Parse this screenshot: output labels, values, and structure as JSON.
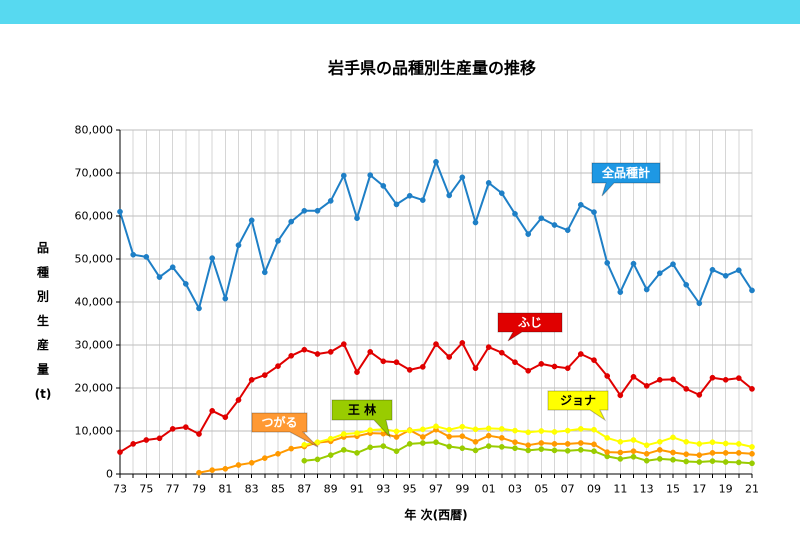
{
  "chart_data": {
    "type": "line",
    "title": "岩手県の品種別生産量の推移",
    "xlabel": "年 次(西暦)",
    "ylabel": "品種別生産量(t)",
    "xlim": [
      1973,
      2021
    ],
    "ylim": [
      0,
      80000
    ],
    "grid": true,
    "markers": true,
    "x": [
      1973,
      1974,
      1975,
      1976,
      1977,
      1978,
      1979,
      1980,
      1981,
      1982,
      1983,
      1984,
      1985,
      1986,
      1987,
      1988,
      1989,
      1990,
      1991,
      1992,
      1993,
      1994,
      1995,
      1996,
      1997,
      1998,
      1999,
      2000,
      2001,
      2002,
      2003,
      2004,
      2005,
      2006,
      2007,
      2008,
      2009,
      2010,
      2011,
      2012,
      2013,
      2014,
      2015,
      2016,
      2017,
      2018,
      2019,
      2020,
      2021
    ],
    "xticks": [
      1973,
      1975,
      1977,
      1979,
      1981,
      1983,
      1985,
      1987,
      1989,
      1991,
      1993,
      1995,
      1997,
      1999,
      2001,
      2003,
      2005,
      2007,
      2009,
      2011,
      2013,
      2015,
      2017,
      2019,
      2021
    ],
    "xtick_labels": [
      "73",
      "75",
      "77",
      "79",
      "81",
      "83",
      "85",
      "87",
      "89",
      "91",
      "93",
      "95",
      "97",
      "99",
      "01",
      "03",
      "05",
      "07",
      "09",
      "11",
      "13",
      "15",
      "17",
      "19",
      "21"
    ],
    "yticks": [
      0,
      10000,
      20000,
      30000,
      40000,
      50000,
      60000,
      70000,
      80000
    ],
    "ytick_labels": [
      "0",
      "10,000",
      "20,000",
      "30,000",
      "40,000",
      "50,000",
      "60,000",
      "70,000",
      "80,000"
    ],
    "series": [
      {
        "name": "全品種計",
        "color": "#1E7FC6",
        "label_fill": "#1E98E4",
        "label_text": "#FFFFFF",
        "values": [
          61000,
          51000,
          50500,
          45800,
          48100,
          44200,
          38500,
          50200,
          40800,
          53200,
          59000,
          46900,
          54200,
          58700,
          61200,
          61200,
          63500,
          69400,
          59500,
          69500,
          67000,
          62700,
          64700,
          63700,
          72600,
          64800,
          69000,
          58500,
          67700,
          65300,
          60500,
          55800,
          59500,
          57900,
          56700,
          62600,
          60900,
          49100,
          42300,
          48900,
          42900,
          46700,
          48800,
          44000,
          39700,
          47500,
          46100,
          47400,
          42700
        ]
      },
      {
        "name": "ふじ",
        "color": "#E00000",
        "label_fill": "#E00000",
        "label_text": "#FFFFFF",
        "values": [
          5100,
          7000,
          7900,
          8300,
          10500,
          10900,
          9300,
          14700,
          13200,
          17200,
          21900,
          23000,
          25100,
          27500,
          28900,
          27900,
          28400,
          30200,
          23700,
          28400,
          26200,
          26000,
          24200,
          24900,
          30200,
          27200,
          30500,
          24600,
          29500,
          28200,
          26000,
          24000,
          25600,
          25000,
          24600,
          27900,
          26500,
          22800,
          18300,
          22600,
          20500,
          21900,
          22000,
          19800,
          18400,
          22400,
          21900,
          22300,
          19800
        ]
      },
      {
        "name": "ジョナ",
        "color": "#FFFF00",
        "label_fill": "#FFFF00",
        "label_text": "#000000",
        "values": [
          null,
          null,
          null,
          null,
          null,
          null,
          null,
          null,
          null,
          null,
          null,
          null,
          null,
          null,
          6800,
          7400,
          8200,
          9300,
          9500,
          10200,
          10400,
          9900,
          10100,
          10400,
          11100,
          10300,
          11000,
          10400,
          10600,
          10500,
          10100,
          9700,
          10000,
          9800,
          10100,
          10500,
          10300,
          8400,
          7500,
          7900,
          6700,
          7500,
          8500,
          7500,
          7000,
          7400,
          7100,
          7000,
          6300
        ]
      },
      {
        "name": "王 林",
        "color": "#99CC00",
        "label_fill": "#99CC00",
        "label_text": "#000000",
        "values": [
          null,
          null,
          null,
          null,
          null,
          null,
          null,
          null,
          null,
          null,
          null,
          null,
          null,
          null,
          3100,
          3400,
          4400,
          5600,
          4900,
          6200,
          6500,
          5300,
          7000,
          7200,
          7400,
          6400,
          6000,
          5500,
          6500,
          6300,
          6000,
          5500,
          5800,
          5500,
          5400,
          5600,
          5300,
          4100,
          3500,
          4000,
          3100,
          3500,
          3300,
          2900,
          2800,
          3000,
          2800,
          2700,
          2500
        ]
      },
      {
        "name": "つがる",
        "color": "#FF9900",
        "label_fill": "#FF9933",
        "label_text": "#FFFFFF",
        "values": [
          null,
          null,
          null,
          null,
          null,
          null,
          300,
          900,
          1200,
          2100,
          2600,
          3700,
          4700,
          5900,
          6400,
          7300,
          7600,
          8600,
          8800,
          9500,
          9400,
          8600,
          10200,
          8600,
          10300,
          8700,
          8800,
          7500,
          8900,
          8400,
          7400,
          6700,
          7200,
          7000,
          7000,
          7200,
          6900,
          5100,
          5000,
          5300,
          4700,
          5600,
          5000,
          4600,
          4400,
          4900,
          4900,
          4900,
          4700
        ]
      }
    ]
  }
}
